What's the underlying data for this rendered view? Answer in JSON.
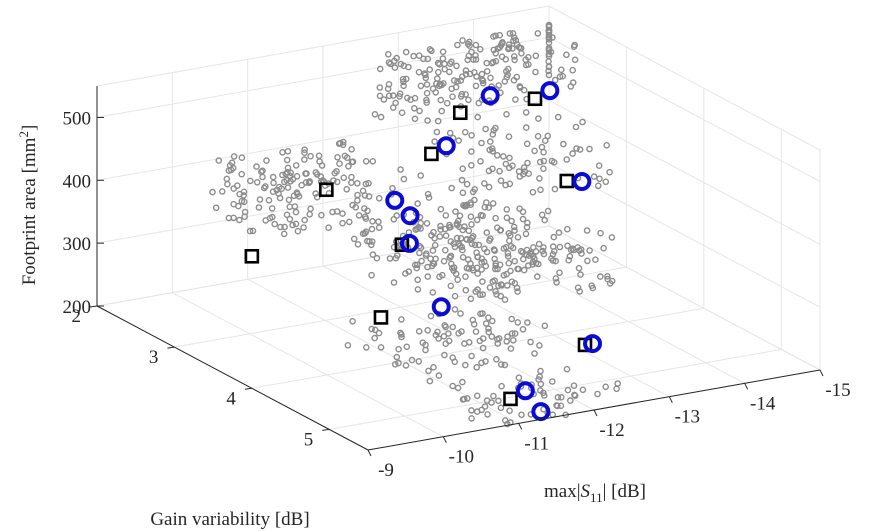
{
  "chart_data": {
    "type": "scatter3d",
    "title": "",
    "xlabel": "max|S₁₁| [dB]",
    "ylabel": "Gain variability [dB]",
    "zlabel": "Footprint area [mm²]",
    "xlabel_parts": {
      "pre": "max|",
      "var": "S",
      "sub": "11",
      "post": "| [dB]"
    },
    "zlabel_parts": {
      "pre": "Footprint area [mm",
      "sup": "2",
      "post": "]"
    },
    "xlim": [
      -15,
      -9
    ],
    "ylim": [
      2,
      5.5
    ],
    "zlim": [
      200,
      550
    ],
    "xticks": [
      -15,
      -14,
      -13,
      -12,
      -11,
      -10,
      -9
    ],
    "yticks": [
      2,
      3,
      4,
      5
    ],
    "zticks": [
      200,
      300,
      400,
      500
    ],
    "xtick_labels": [
      "-15",
      "-14",
      "-13",
      "-12",
      "-11",
      "-10",
      "-9"
    ],
    "ytick_labels": [
      "2",
      "3",
      "4",
      "5"
    ],
    "ztick_labels": [
      "200",
      "300",
      "400",
      "500"
    ],
    "grid": true,
    "colors": {
      "cloud": "#8c8c8c",
      "squares": "#000000",
      "circles": "#0b0bd6"
    },
    "series": [
      {
        "marker": "square",
        "points": [
          [
            -9.0,
            4.0,
            410
          ],
          [
            -10.4,
            3.6,
            460
          ],
          [
            -10.2,
            4.5,
            320
          ],
          [
            -12.0,
            3.4,
            470
          ],
          [
            -13.0,
            2.8,
            475
          ],
          [
            -14.3,
            2.5,
            450
          ],
          [
            -13.9,
            3.3,
            380
          ],
          [
            -12.6,
            4.8,
            245
          ],
          [
            -11.3,
            3.7,
            360
          ],
          [
            -11.2,
            5.2,
            215
          ]
        ]
      },
      {
        "marker": "circle",
        "points": [
          [
            -11.0,
            3.9,
            450
          ],
          [
            -11.1,
            4.0,
            430
          ],
          [
            -12.3,
            3.3,
            470
          ],
          [
            -13.5,
            2.7,
            485
          ],
          [
            -14.6,
            2.4,
            450
          ],
          [
            -14.1,
            3.3,
            375
          ],
          [
            -12.7,
            4.8,
            245
          ],
          [
            -11.4,
            3.7,
            360
          ],
          [
            -11.0,
            4.5,
            320
          ],
          [
            -11.5,
            5.1,
            215
          ],
          [
            -11.5,
            5.3,
            195
          ]
        ]
      },
      {
        "marker": "small-circle",
        "points": []
      }
    ],
    "cloud": {
      "count": 900,
      "envelope": [
        [
          -13.6,
          1.9,
          420,
          520,
          0.75
        ],
        [
          -10.3,
          3.4,
          410,
          500,
          0.95
        ],
        [
          -11.6,
          3.9,
          330,
          420,
          1.0
        ],
        [
          -12.4,
          4.1,
          300,
          380,
          0.85
        ],
        [
          -11.0,
          4.6,
          250,
          300,
          0.55
        ],
        [
          -11.4,
          5.2,
          200,
          235,
          0.35
        ],
        [
          -13.5,
          3.1,
          360,
          460,
          0.55
        ],
        [
          -14.8,
          1.9,
          440,
          520,
          0.45
        ]
      ]
    }
  }
}
